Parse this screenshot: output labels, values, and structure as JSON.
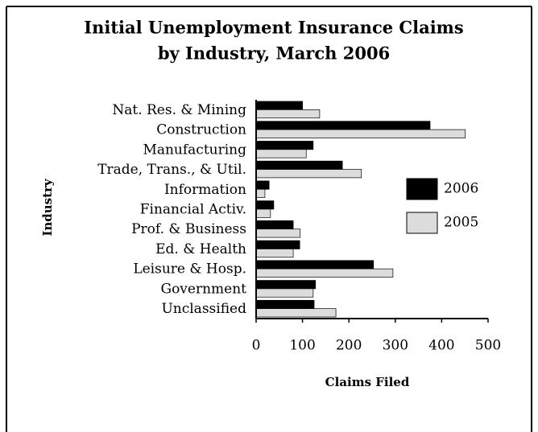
{
  "chart_data": {
    "type": "bar",
    "orientation": "horizontal",
    "title": [
      "Initial Unemployment Insurance Claims",
      "by Industry, March 2006"
    ],
    "x_label": "Claims Filed",
    "y_label": "Industry",
    "categories": [
      "Nat. Res. & Mining",
      "Construction",
      "Manufacturing",
      "Trade, Trans., & Util.",
      "Information",
      "Financial Activ.",
      "Prof. & Business",
      "Ed. & Health",
      "Leisure & Hosp.",
      "Government",
      "Unclassified"
    ],
    "series": [
      {
        "name": "2006",
        "color": "#000000",
        "values": [
          100,
          375,
          123,
          186,
          28,
          38,
          80,
          94,
          253,
          128,
          125
        ]
      },
      {
        "name": "2005",
        "color": "#dcdcdc",
        "values": [
          137,
          451,
          108,
          227,
          19,
          31,
          95,
          80,
          295,
          123,
          172
        ]
      }
    ],
    "xlim": [
      0,
      500
    ],
    "xticks": [
      0,
      100,
      200,
      300,
      400,
      500
    ],
    "grid": false,
    "legend": "right"
  }
}
